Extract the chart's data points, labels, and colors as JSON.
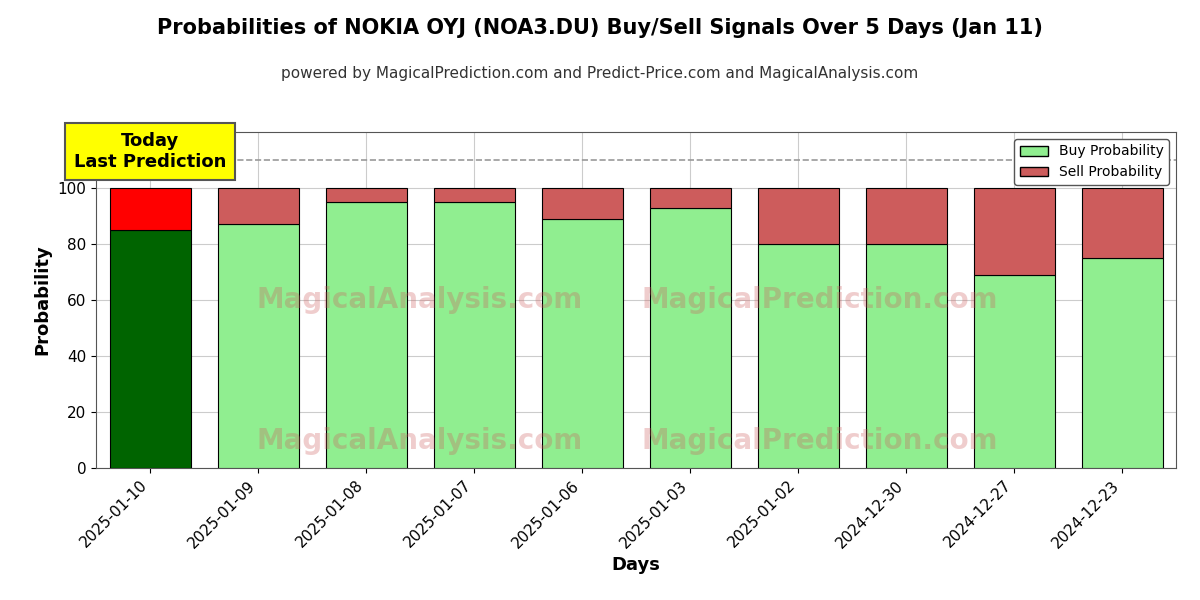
{
  "title": "Probabilities of NOKIA OYJ (NOA3.DU) Buy/Sell Signals Over 5 Days (Jan 11)",
  "subtitle": "powered by MagicalPrediction.com and Predict-Price.com and MagicalAnalysis.com",
  "xlabel": "Days",
  "ylabel": "Probability",
  "dates": [
    "2025-01-10",
    "2025-01-09",
    "2025-01-08",
    "2025-01-07",
    "2025-01-06",
    "2025-01-03",
    "2025-01-02",
    "2024-12-30",
    "2024-12-27",
    "2024-12-23"
  ],
  "buy_probs": [
    85,
    87,
    95,
    95,
    89,
    93,
    80,
    80,
    69,
    75
  ],
  "sell_probs": [
    15,
    13,
    5,
    5,
    11,
    7,
    20,
    20,
    31,
    25
  ],
  "today_buy_color": "#006400",
  "today_sell_color": "#FF0000",
  "other_buy_color": "#90EE90",
  "other_sell_color": "#CD5C5C",
  "bar_edge_color": "#000000",
  "today_annotation_bg": "#FFFF00",
  "today_annotation_text": "Today\nLast Prediction",
  "legend_buy_label": "Buy Probability",
  "legend_sell_label": "Sell Probability",
  "watermark_left_text": "MagicalAnalysis.com",
  "watermark_right_text": "MagicalPrediction.com",
  "watermark_color": "#CD5C5C",
  "watermark_alpha": 0.3,
  "ylim": [
    0,
    120
  ],
  "dashed_line_y": 110,
  "dashed_line_color": "#999999",
  "background_color": "#FFFFFF",
  "grid_color": "#CCCCCC",
  "title_fontsize": 15,
  "subtitle_fontsize": 11,
  "axis_label_fontsize": 13,
  "tick_fontsize": 11,
  "annotation_fontsize": 13,
  "bar_width": 0.75
}
